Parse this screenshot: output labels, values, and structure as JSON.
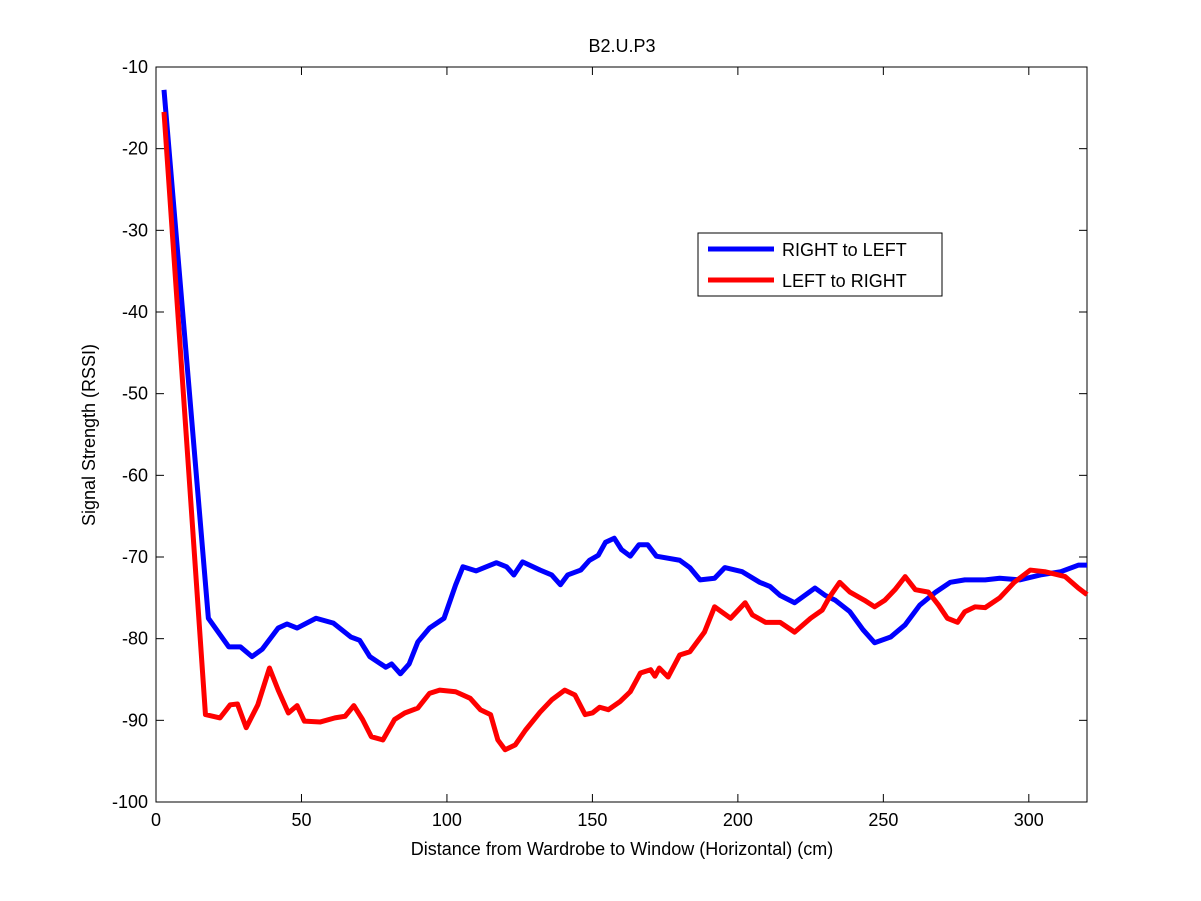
{
  "chart_data": {
    "type": "line",
    "title": "B2.U.P3",
    "xlabel": "Distance from Wardrobe to Window (Horizontal)  (cm)",
    "ylabel": "Signal Strength (RSSI)",
    "xlim": [
      0,
      320
    ],
    "ylim": [
      -100,
      -10
    ],
    "xticks": [
      0,
      50,
      100,
      150,
      200,
      250,
      300
    ],
    "yticks": [
      -100,
      -90,
      -80,
      -70,
      -60,
      -50,
      -40,
      -30,
      -20,
      -10
    ],
    "legend": "upper right",
    "series": [
      {
        "name": "RIGHT to LEFT",
        "color": "#0000ff",
        "x": [
          2.75,
          18,
          25,
          29,
          33,
          36.5,
          42,
          45,
          48.5,
          55,
          61,
          67,
          70,
          73.5,
          79,
          81,
          84,
          87,
          90,
          94,
          99,
          103,
          105.5,
          110,
          117,
          120.5,
          123,
          126,
          132,
          136,
          139,
          141.5,
          146,
          149,
          152,
          154.5,
          157.5,
          160,
          163,
          166,
          169,
          172,
          180,
          183.5,
          187,
          192,
          195.5,
          201.5,
          207.5,
          211,
          214.5,
          219.5,
          223,
          226.5,
          230,
          233.5,
          238.5,
          243,
          247,
          252.5,
          257.5,
          262.5,
          268,
          273,
          278,
          285,
          290,
          297,
          304,
          311,
          317,
          320
        ],
        "values": [
          -12.8,
          -77.5,
          -81,
          -81,
          -82.2,
          -81.3,
          -78.7,
          -78.2,
          -78.7,
          -77.5,
          -78.1,
          -79.8,
          -80.2,
          -82.2,
          -83.5,
          -83.1,
          -84.3,
          -83.1,
          -80.4,
          -78.7,
          -77.5,
          -73.4,
          -71.2,
          -71.7,
          -70.7,
          -71.2,
          -72.2,
          -70.6,
          -71.6,
          -72.2,
          -73.4,
          -72.2,
          -71.6,
          -70.4,
          -69.8,
          -68.2,
          -67.7,
          -69.1,
          -69.9,
          -68.5,
          -68.5,
          -69.9,
          -70.4,
          -71.3,
          -72.8,
          -72.6,
          -71.3,
          -71.8,
          -73.1,
          -73.6,
          -74.7,
          -75.6,
          -74.7,
          -73.8,
          -74.7,
          -75.3,
          -76.7,
          -78.9,
          -80.5,
          -79.8,
          -78.3,
          -75.9,
          -74.3,
          -73.1,
          -72.8,
          -72.8,
          -72.6,
          -72.8,
          -72.2,
          -71.8,
          -71,
          -71
        ]
      },
      {
        "name": "LEFT to RIGHT",
        "color": "#ff0000",
        "x": [
          2.75,
          17,
          22,
          25.5,
          28,
          31,
          35,
          39,
          42,
          45.5,
          48.5,
          51,
          56.5,
          61.5,
          65,
          68,
          71,
          74,
          78,
          82,
          85.5,
          90,
          94,
          97.5,
          103,
          108,
          111.5,
          115,
          117.5,
          120,
          123.5,
          127,
          132,
          136,
          140.5,
          144,
          147.5,
          150,
          152.5,
          155.5,
          159.5,
          163,
          166.5,
          170,
          171.5,
          173,
          176,
          180,
          183.5,
          188.5,
          192,
          197.5,
          202.5,
          205,
          209.5,
          214.5,
          219.5,
          225,
          229,
          231.5,
          235,
          238.5,
          243.5,
          247,
          250.5,
          254,
          257.5,
          261,
          265.5,
          269,
          272,
          275.5,
          278,
          281.5,
          285,
          290,
          295,
          300.5,
          305.5,
          312.5,
          317,
          320
        ],
        "values": [
          -15.5,
          -89.3,
          -89.7,
          -88.1,
          -88,
          -90.9,
          -88.1,
          -83.6,
          -86.3,
          -89.1,
          -88.2,
          -90.1,
          -90.2,
          -89.7,
          -89.5,
          -88.2,
          -89.9,
          -92,
          -92.4,
          -89.9,
          -89.1,
          -88.5,
          -86.7,
          -86.3,
          -86.5,
          -87.3,
          -88.7,
          -89.3,
          -92.4,
          -93.6,
          -93,
          -91.2,
          -89,
          -87.5,
          -86.3,
          -86.9,
          -89.3,
          -89.1,
          -88.4,
          -88.7,
          -87.7,
          -86.5,
          -84.2,
          -83.8,
          -84.6,
          -83.6,
          -84.7,
          -82,
          -81.6,
          -79.2,
          -76.1,
          -77.5,
          -75.6,
          -77.1,
          -78,
          -78,
          -79.2,
          -77.5,
          -76.5,
          -74.9,
          -73.1,
          -74.3,
          -75.3,
          -76.1,
          -75.3,
          -74,
          -72.4,
          -74,
          -74.3,
          -75.9,
          -77.5,
          -78,
          -76.7,
          -76.1,
          -76.2,
          -75,
          -73.1,
          -71.6,
          -71.8,
          -72.4,
          -73.8,
          -74.6
        ]
      }
    ]
  }
}
